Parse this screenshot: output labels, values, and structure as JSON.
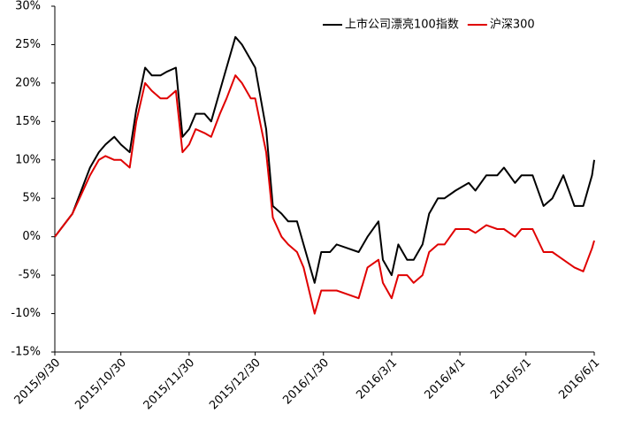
{
  "chart_data": {
    "type": "line",
    "x": [
      "2015/9/30",
      "2015/10/8",
      "2015/10/12",
      "2015/10/16",
      "2015/10/20",
      "2015/10/23",
      "2015/10/27",
      "2015/10/30",
      "2015/11/3",
      "2015/11/6",
      "2015/11/10",
      "2015/11/13",
      "2015/11/17",
      "2015/11/20",
      "2015/11/24",
      "2015/11/27",
      "2015/11/30",
      "2015/12/3",
      "2015/12/7",
      "2015/12/10",
      "2015/12/14",
      "2015/12/17",
      "2015/12/21",
      "2015/12/24",
      "2015/12/28",
      "2015/12/30",
      "2016/1/4",
      "2016/1/7",
      "2016/1/11",
      "2016/1/14",
      "2016/1/18",
      "2016/1/21",
      "2016/1/26",
      "2016/1/29",
      "2016/2/2",
      "2016/2/5",
      "2016/2/15",
      "2016/2/19",
      "2016/2/24",
      "2016/2/26",
      "2016/3/1",
      "2016/3/4",
      "2016/3/8",
      "2016/3/11",
      "2016/3/15",
      "2016/3/18",
      "2016/3/22",
      "2016/3/25",
      "2016/3/30",
      "2016/4/5",
      "2016/4/8",
      "2016/4/13",
      "2016/4/18",
      "2016/4/21",
      "2016/4/26",
      "2016/4/29",
      "2016/5/4",
      "2016/5/9",
      "2016/5/13",
      "2016/5/18",
      "2016/5/23",
      "2016/5/27",
      "2016/5/31",
      "2016/6/1"
    ],
    "series": [
      {
        "name": "上市公司漂亮100指数",
        "color": "#000000",
        "values": [
          0,
          3,
          6,
          9,
          11,
          12,
          13,
          12,
          11,
          16.5,
          22,
          21,
          21,
          21.5,
          22,
          13,
          14,
          16,
          16,
          15,
          19,
          22,
          26,
          25,
          23,
          22,
          14,
          4,
          3,
          2,
          2,
          -1,
          -6,
          -2,
          -2,
          -1,
          -2,
          0,
          2,
          -3,
          -5,
          -1,
          -3,
          -3,
          -1,
          3,
          5,
          5,
          6,
          7,
          6,
          8,
          8,
          9,
          7,
          8,
          8,
          4,
          5,
          8,
          4,
          4,
          8,
          10
        ]
      },
      {
        "name": "沪深300",
        "color": "#e00000",
        "values": [
          0,
          3,
          5.5,
          8,
          10,
          10.5,
          10,
          10,
          9,
          15,
          20,
          19,
          18,
          18,
          19,
          11,
          12,
          14,
          13.5,
          13,
          16,
          18,
          21,
          20,
          18,
          18,
          11,
          2.5,
          0,
          -1,
          -2,
          -4,
          -10,
          -7,
          -7,
          -7,
          -8,
          -4,
          -3,
          -6,
          -8,
          -5,
          -5,
          -6,
          -5,
          -2,
          -1,
          -1,
          1,
          1,
          0.5,
          1.5,
          1,
          1,
          0,
          1,
          1,
          -2,
          -2,
          -3,
          -4,
          -4.5,
          -1.5,
          -0.5
        ]
      }
    ],
    "xlim": [
      "2015/9/30",
      "2016/6/1"
    ],
    "xticks": [
      "2015/9/30",
      "2015/10/30",
      "2015/11/30",
      "2015/12/30",
      "2016/1/30",
      "2016/3/1",
      "2016/4/1",
      "2016/5/1",
      "2016/6/1"
    ],
    "ylim": [
      -15,
      30
    ],
    "yticks": [
      {
        "value": -15,
        "label": "-15%"
      },
      {
        "value": -10,
        "label": "-10%"
      },
      {
        "value": -5,
        "label": "-5%"
      },
      {
        "value": 0,
        "label": "0%"
      },
      {
        "value": 5,
        "label": "5%"
      },
      {
        "value": 10,
        "label": "10%"
      },
      {
        "value": 15,
        "label": "15%"
      },
      {
        "value": 20,
        "label": "20%"
      },
      {
        "value": 25,
        "label": "25%"
      },
      {
        "value": 30,
        "label": "30%"
      }
    ],
    "legend": "upper right"
  }
}
